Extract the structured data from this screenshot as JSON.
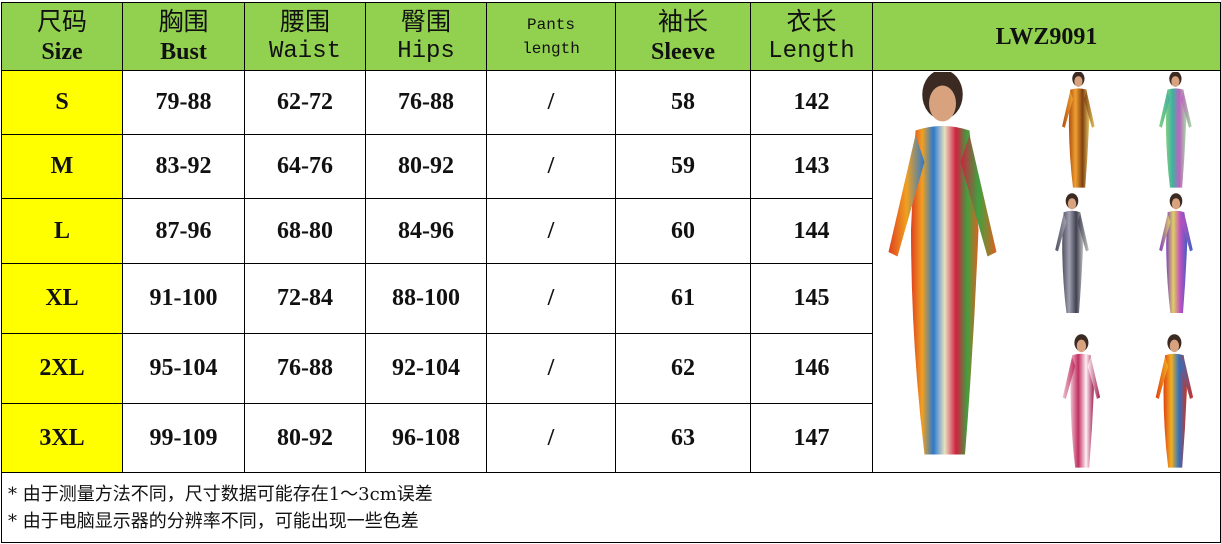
{
  "header": {
    "size": {
      "cn": "尺码",
      "en": "Size"
    },
    "bust": {
      "cn": "胸围",
      "en": "Bust"
    },
    "waist": {
      "cn": "腰围",
      "en": "Waist"
    },
    "hips": {
      "cn": "臀围",
      "en": "Hips"
    },
    "pants": {
      "l1": "Pants",
      "l2": "length"
    },
    "sleeve": {
      "cn": "袖长",
      "en": "Sleeve"
    },
    "length": {
      "cn": "衣长",
      "en": "Length"
    },
    "model": "LWZ9091"
  },
  "rows": [
    {
      "size": "S",
      "bust": "79-88",
      "waist": "62-72",
      "hips": "76-88",
      "pants": "/",
      "sleeve": "58",
      "length": "142"
    },
    {
      "size": "M",
      "bust": "83-92",
      "waist": "64-76",
      "hips": "80-92",
      "pants": "/",
      "sleeve": "59",
      "length": "143"
    },
    {
      "size": "L",
      "bust": "87-96",
      "waist": "68-80",
      "hips": "84-96",
      "pants": "/",
      "sleeve": "60",
      "length": "144"
    },
    {
      "size": "XL",
      "bust": "91-100",
      "waist": "72-84",
      "hips": "88-100",
      "pants": "/",
      "sleeve": "61",
      "length": "145"
    },
    {
      "size": "2XL",
      "bust": "95-104",
      "waist": "76-88",
      "hips": "92-104",
      "pants": "/",
      "sleeve": "62",
      "length": "146"
    },
    {
      "size": "3XL",
      "bust": "99-109",
      "waist": "80-92",
      "hips": "96-108",
      "pants": "/",
      "sleeve": "63",
      "length": "147"
    }
  ],
  "notes": [
    "* 由于测量方法不同，尺寸数据可能存在1～3cm误差",
    "* 由于电脑显示器的分辨率不同，可能出现一些色差"
  ],
  "colors": {
    "header_bg": "#92d050",
    "size_bg": "#ffff00"
  }
}
